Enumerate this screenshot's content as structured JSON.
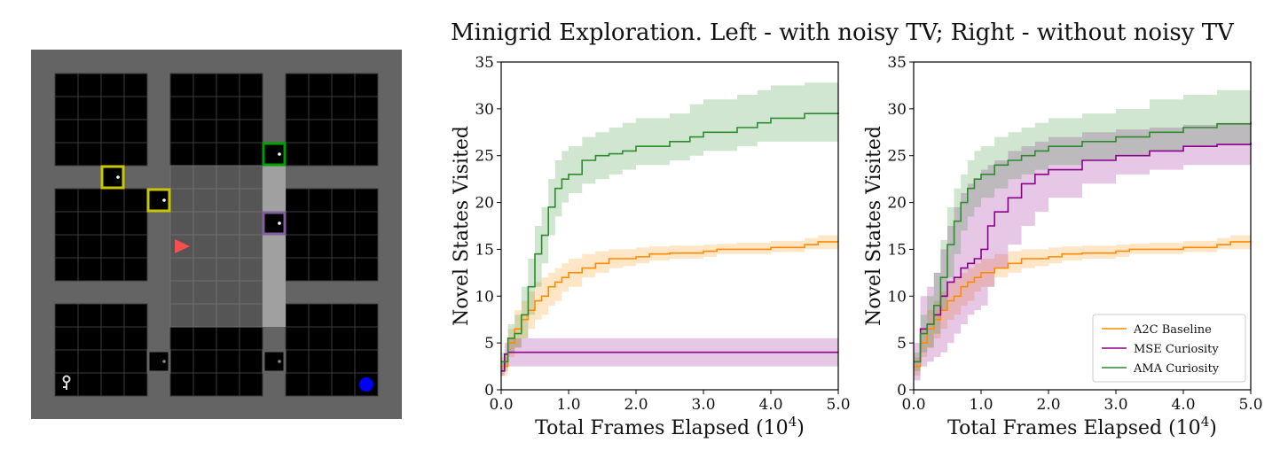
{
  "title": "Minigrid Exploration. Left - with noisy TV; Right - without noisy TV",
  "colors": {
    "a2c": "#ff8c00",
    "mse": "#8b008b",
    "ama": "#2e8b2e",
    "grid_bg": "#646464",
    "room": "#000000",
    "corridor": "#7a7a7a",
    "highlight": "#555555",
    "agent": "#ff4d4d",
    "goal": "#0000ff",
    "door_yellow": "#c8c800",
    "door_green": "#00a000",
    "door_purple": "#8060a0",
    "door_grey": "#646464"
  },
  "legend": {
    "entries": [
      "A2C Baseline",
      "MSE Curiosity",
      "AMA Curiosity"
    ],
    "placement": "lower-right"
  },
  "gridworld": {
    "icons": [
      "agent-triangle-icon",
      "key-icon",
      "goal-ball-icon",
      "door-icon"
    ]
  },
  "chart_data": [
    {
      "type": "line",
      "panel": "left",
      "xlabel": "Total Frames Elapsed (10",
      "xlabel_sup": "4",
      "xlabel_close": ")",
      "ylabel": "Novel States Visited",
      "xlim": [
        0,
        5
      ],
      "ylim": [
        0,
        35
      ],
      "xticks": [
        "0.0",
        "1.0",
        "2.0",
        "3.0",
        "4.0",
        "5.0"
      ],
      "yticks": [
        "0",
        "5",
        "10",
        "15",
        "20",
        "25",
        "30",
        "35"
      ],
      "grid": false,
      "series": [
        {
          "name": "A2C Baseline",
          "x": [
            0,
            0.1,
            0.2,
            0.3,
            0.4,
            0.5,
            0.6,
            0.7,
            0.8,
            0.9,
            1.0,
            1.2,
            1.4,
            1.6,
            1.8,
            2.0,
            2.2,
            2.5,
            3.0,
            3.2,
            3.5,
            4.0,
            4.5,
            4.7,
            5.0
          ],
          "y": [
            2.5,
            5.0,
            6.5,
            7.5,
            8.5,
            9.5,
            10.0,
            11.0,
            11.5,
            12.0,
            12.5,
            13.0,
            13.5,
            14.0,
            14.0,
            14.2,
            14.5,
            14.6,
            14.8,
            15.0,
            15.0,
            15.2,
            15.5,
            15.8,
            15.8
          ],
          "lower": [
            1.5,
            3.5,
            4.5,
            5.5,
            6.5,
            7.5,
            8.0,
            9.0,
            9.5,
            10.5,
            11.0,
            12.0,
            12.5,
            13.0,
            13.2,
            13.5,
            13.8,
            14.0,
            14.2,
            14.5,
            14.5,
            14.7,
            15.0,
            15.0,
            15.0
          ],
          "upper": [
            3.5,
            6.5,
            8.5,
            9.5,
            10.5,
            11.5,
            12.0,
            12.5,
            13.0,
            13.5,
            14.0,
            14.5,
            14.8,
            15.0,
            15.0,
            15.2,
            15.3,
            15.4,
            15.5,
            15.6,
            15.7,
            15.9,
            16.2,
            16.5,
            16.5
          ]
        },
        {
          "name": "MSE Curiosity",
          "x": [
            0,
            0.05,
            0.1,
            5.0
          ],
          "y": [
            2.0,
            3.8,
            4.0,
            4.0
          ],
          "lower": [
            1.5,
            2.5,
            2.5,
            2.5
          ],
          "upper": [
            3.0,
            5.0,
            5.5,
            5.5
          ]
        },
        {
          "name": "AMA Curiosity",
          "x": [
            0,
            0.1,
            0.2,
            0.3,
            0.4,
            0.5,
            0.6,
            0.7,
            0.8,
            0.9,
            1.0,
            1.2,
            1.4,
            1.6,
            1.8,
            2.0,
            2.5,
            2.8,
            3.0,
            3.5,
            3.8,
            4.0,
            4.5,
            5.0
          ],
          "y": [
            3.0,
            5.5,
            6.0,
            8.0,
            11.0,
            14.5,
            16.5,
            19.5,
            21.5,
            22.5,
            23.0,
            24.5,
            25.0,
            25.2,
            25.5,
            26.0,
            26.5,
            27.0,
            27.5,
            28.0,
            28.5,
            29.0,
            29.5,
            29.6
          ],
          "lower": [
            2.0,
            4.0,
            4.5,
            5.5,
            8.0,
            11.0,
            13.5,
            16.5,
            18.5,
            20.0,
            21.0,
            22.0,
            22.5,
            23.0,
            23.5,
            24.0,
            24.5,
            25.0,
            25.5,
            26.0,
            26.5,
            26.5,
            26.5,
            26.5
          ],
          "upper": [
            4.0,
            7.0,
            8.0,
            11.0,
            14.0,
            17.5,
            19.5,
            22.5,
            24.5,
            25.5,
            26.0,
            27.0,
            27.5,
            28.0,
            28.5,
            29.0,
            29.5,
            30.5,
            31.0,
            31.5,
            32.0,
            32.5,
            32.8,
            32.8
          ]
        }
      ]
    },
    {
      "type": "line",
      "panel": "right",
      "xlabel": "Total Frames Elapsed (10",
      "xlabel_sup": "4",
      "xlabel_close": ")",
      "ylabel": "Novel States Visited",
      "xlim": [
        0,
        5
      ],
      "ylim": [
        0,
        35
      ],
      "xticks": [
        "0.0",
        "1.0",
        "2.0",
        "3.0",
        "4.0",
        "5.0"
      ],
      "yticks": [
        "0",
        "5",
        "10",
        "15",
        "20",
        "25",
        "30",
        "35"
      ],
      "grid": false,
      "series": [
        {
          "name": "A2C Baseline",
          "x": [
            0,
            0.1,
            0.2,
            0.3,
            0.4,
            0.5,
            0.6,
            0.7,
            0.8,
            0.9,
            1.0,
            1.2,
            1.4,
            1.6,
            1.8,
            2.0,
            2.2,
            2.5,
            3.0,
            3.2,
            3.5,
            4.0,
            4.5,
            4.7,
            5.0
          ],
          "y": [
            2.5,
            5.0,
            6.5,
            7.5,
            8.5,
            9.5,
            10.0,
            11.0,
            11.5,
            12.0,
            12.5,
            13.0,
            13.5,
            14.0,
            14.0,
            14.2,
            14.5,
            14.6,
            14.8,
            15.0,
            15.0,
            15.2,
            15.5,
            15.8,
            15.8
          ],
          "lower": [
            1.5,
            3.5,
            4.5,
            5.5,
            6.5,
            7.5,
            8.0,
            9.0,
            9.5,
            10.5,
            11.0,
            12.0,
            12.5,
            13.0,
            13.2,
            13.5,
            13.8,
            14.0,
            14.2,
            14.5,
            14.5,
            14.7,
            15.0,
            15.0,
            15.0
          ],
          "upper": [
            3.5,
            6.5,
            8.5,
            9.5,
            10.5,
            11.5,
            12.0,
            12.5,
            13.0,
            13.5,
            14.0,
            14.5,
            14.8,
            15.0,
            15.0,
            15.2,
            15.3,
            15.4,
            15.5,
            15.6,
            15.7,
            15.9,
            16.2,
            16.5,
            16.5
          ]
        },
        {
          "name": "MSE Curiosity",
          "x": [
            0,
            0.1,
            0.2,
            0.3,
            0.4,
            0.5,
            0.6,
            0.7,
            0.8,
            0.9,
            1.0,
            1.1,
            1.2,
            1.4,
            1.6,
            1.8,
            2.0,
            2.5,
            3.0,
            3.5,
            4.0,
            4.5,
            5.0
          ],
          "y": [
            3.0,
            6.5,
            7.0,
            8.0,
            10.0,
            11.5,
            12.0,
            13.0,
            13.5,
            14.0,
            15.0,
            17.5,
            19.0,
            20.5,
            22.0,
            23.0,
            23.5,
            24.5,
            25.0,
            25.5,
            26.0,
            26.2,
            26.4
          ],
          "lower": [
            1.0,
            2.5,
            3.0,
            3.5,
            4.0,
            5.0,
            6.0,
            7.0,
            8.0,
            8.5,
            9.0,
            11.0,
            13.0,
            15.5,
            17.5,
            19.0,
            20.5,
            22.0,
            23.0,
            23.5,
            24.0,
            24.0,
            24.0
          ],
          "upper": [
            5.0,
            10.0,
            11.0,
            12.5,
            15.0,
            17.5,
            19.5,
            21.0,
            22.0,
            22.5,
            23.5,
            24.0,
            24.5,
            25.5,
            26.0,
            26.5,
            27.0,
            27.5,
            27.8,
            28.0,
            28.3,
            28.5,
            28.8
          ]
        },
        {
          "name": "AMA Curiosity",
          "x": [
            0,
            0.1,
            0.2,
            0.3,
            0.4,
            0.5,
            0.6,
            0.7,
            0.8,
            0.9,
            1.0,
            1.2,
            1.4,
            1.6,
            1.8,
            2.0,
            2.5,
            3.0,
            3.5,
            4.0,
            4.5,
            5.0
          ],
          "y": [
            3.0,
            6.0,
            7.0,
            9.0,
            12.0,
            15.5,
            18.0,
            20.0,
            21.5,
            22.5,
            23.0,
            24.0,
            24.5,
            25.0,
            25.5,
            26.0,
            26.5,
            27.0,
            27.5,
            28.0,
            28.4,
            28.6
          ],
          "lower": [
            2.0,
            4.0,
            4.5,
            6.0,
            8.5,
            12.0,
            14.5,
            17.0,
            18.5,
            19.5,
            20.5,
            21.5,
            22.5,
            23.0,
            23.5,
            24.0,
            24.5,
            25.0,
            25.5,
            26.0,
            26.2,
            26.4
          ],
          "upper": [
            4.0,
            8.0,
            10.0,
            12.5,
            16.0,
            19.5,
            21.5,
            23.0,
            24.5,
            25.5,
            26.0,
            27.0,
            27.5,
            28.0,
            28.5,
            29.0,
            29.5,
            30.0,
            31.0,
            31.5,
            32.0,
            32.3
          ]
        }
      ]
    }
  ]
}
